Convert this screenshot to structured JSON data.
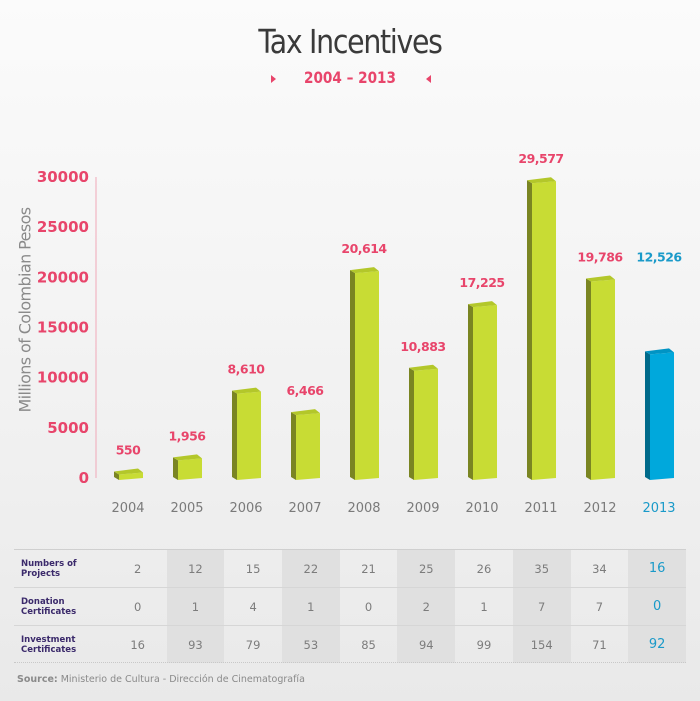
{
  "header": {
    "title": "Tax Incentives",
    "subtitle": "2004 – 2013"
  },
  "colors": {
    "accent": "#e8456b",
    "bar_front": "#c8dc34",
    "bar_side": "#7a8522",
    "bar_top": "#b3c72a",
    "highlight_front": "#00a8dc",
    "highlight_side": "#006a8a",
    "highlight_top": "#0094c4",
    "highlight_text": "#1a9ac9"
  },
  "chart_data": {
    "type": "bar",
    "title": "Tax Incentives",
    "subtitle": "2004 – 2013",
    "xlabel": "",
    "ylabel": "Millions of Colombian Pesos",
    "ylim": [
      0,
      30000
    ],
    "yticks": [
      "0",
      "5000",
      "10000",
      "15000",
      "20000",
      "25000",
      "30000"
    ],
    "ytick_values": [
      0,
      5000,
      10000,
      15000,
      20000,
      25000,
      30000
    ],
    "grid": false,
    "categories": [
      "2004",
      "2005",
      "2006",
      "2007",
      "2008",
      "2009",
      "2010",
      "2011",
      "2012",
      "2013"
    ],
    "values": [
      550,
      1956,
      8610,
      6466,
      20614,
      10883,
      17225,
      29577,
      19786,
      12526
    ],
    "value_labels": [
      "550",
      "1,956",
      "8,610",
      "6,466",
      "20,614",
      "10,883",
      "17,225",
      "29,577",
      "19,786",
      "12,526"
    ],
    "highlight_category": "2013"
  },
  "table": {
    "rows": [
      {
        "label": "Numbers of Projects",
        "values": [
          "2",
          "12",
          "15",
          "22",
          "21",
          "25",
          "26",
          "35",
          "34",
          "16"
        ]
      },
      {
        "label": "Donation Certificates",
        "values": [
          "0",
          "1",
          "4",
          "1",
          "0",
          "2",
          "1",
          "7",
          "7",
          "0"
        ]
      },
      {
        "label": "Investment Certificates",
        "values": [
          "16",
          "93",
          "79",
          "53",
          "85",
          "94",
          "99",
          "154",
          "71",
          "92"
        ]
      }
    ]
  },
  "footer": {
    "source_label": "Source:",
    "source_text": " Ministerio de Cultura - Dirección de Cinematografía"
  }
}
